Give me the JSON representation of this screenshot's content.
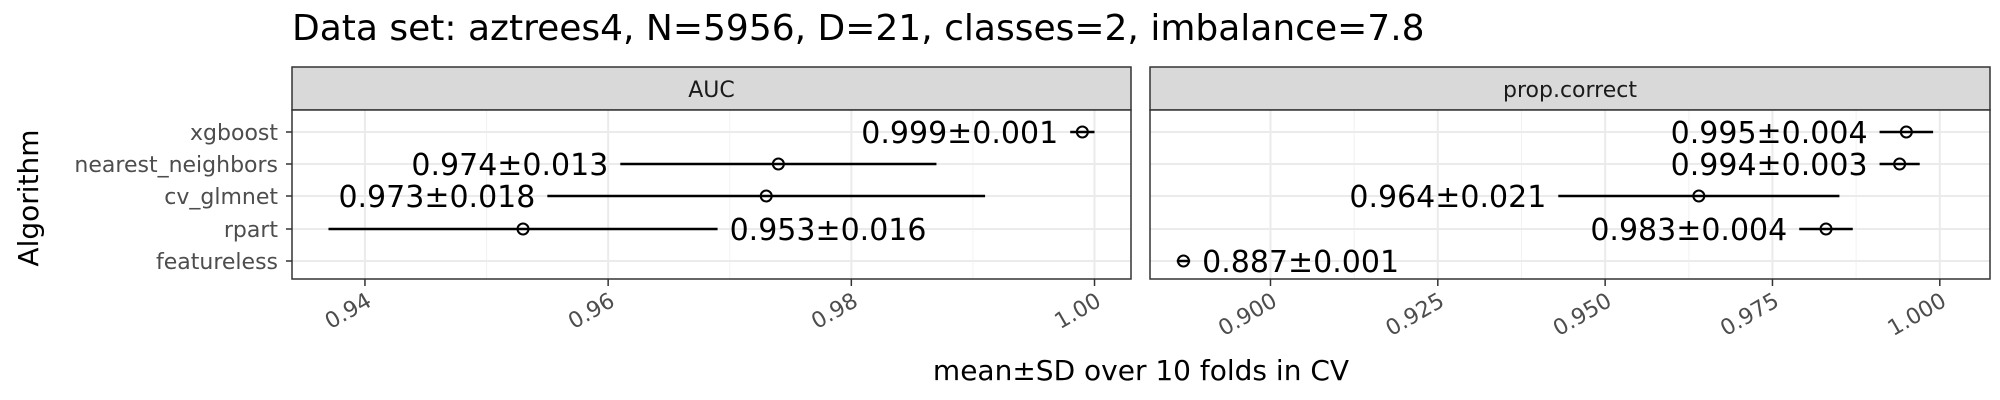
{
  "chart_data": {
    "type": "scatter",
    "title": "Data set: aztrees4, N=5956, D=21, classes=2, imbalance=7.8",
    "xlabel": "mean±SD over 10 folds in CV",
    "ylabel": "Algorithm",
    "categories": [
      "xgboost",
      "nearest_neighbors",
      "cv_glmnet",
      "rpart",
      "featureless"
    ],
    "grid": true,
    "panels": [
      {
        "name": "AUC",
        "xlim": [
          0.934,
          1.003
        ],
        "ticks": [
          0.94,
          0.96,
          0.98,
          1.0
        ],
        "tick_labels": [
          "0.94",
          "0.96",
          "0.98",
          "1.00"
        ],
        "points": [
          {
            "algorithm": "xgboost",
            "mean": 0.999,
            "sd": 0.001,
            "label": "0.999±0.001",
            "label_side": "left"
          },
          {
            "algorithm": "nearest_neighbors",
            "mean": 0.974,
            "sd": 0.013,
            "label": "0.974±0.013",
            "label_side": "left"
          },
          {
            "algorithm": "cv_glmnet",
            "mean": 0.973,
            "sd": 0.018,
            "label": "0.973±0.018",
            "label_side": "left"
          },
          {
            "algorithm": "rpart",
            "mean": 0.953,
            "sd": 0.016,
            "label": "0.953±0.016",
            "label_side": "right"
          }
        ]
      },
      {
        "name": "prop.correct",
        "xlim": [
          0.882,
          1.0075
        ],
        "ticks": [
          0.9,
          0.925,
          0.95,
          0.975,
          1.0
        ],
        "tick_labels": [
          "0.900",
          "0.925",
          "0.950",
          "0.975",
          "1.000"
        ],
        "points": [
          {
            "algorithm": "xgboost",
            "mean": 0.995,
            "sd": 0.004,
            "label": "0.995±0.004",
            "label_side": "left"
          },
          {
            "algorithm": "nearest_neighbors",
            "mean": 0.994,
            "sd": 0.003,
            "label": "0.994±0.003",
            "label_side": "left"
          },
          {
            "algorithm": "cv_glmnet",
            "mean": 0.964,
            "sd": 0.021,
            "label": "0.964±0.021",
            "label_side": "left"
          },
          {
            "algorithm": "rpart",
            "mean": 0.983,
            "sd": 0.004,
            "label": "0.983±0.004",
            "label_side": "left"
          },
          {
            "algorithm": "featureless",
            "mean": 0.887,
            "sd": 0.001,
            "label": "0.887±0.001",
            "label_side": "right"
          }
        ]
      }
    ]
  }
}
